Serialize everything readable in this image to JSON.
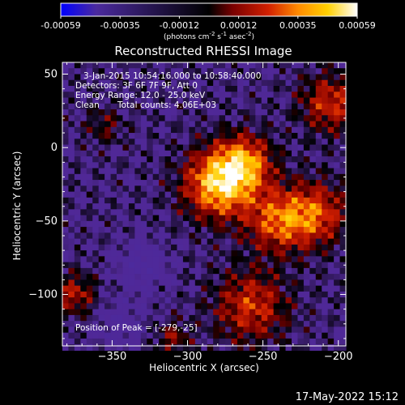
{
  "colorbar": {
    "tick_labels": [
      "-0.00059",
      "-0.00035",
      "-0.00012",
      "0.00012",
      "0.00035",
      "0.00059"
    ],
    "unit_base": "(photons cm",
    "unit_exp1": "-2",
    "unit_mid": " s",
    "unit_exp2": "-1",
    "unit_mid2": " asec",
    "unit_exp3": "-2",
    "unit_end": ")",
    "colors": [
      "#0000ff",
      "#4b2a9e",
      "#000000",
      "#7a0000",
      "#d22000",
      "#ff8a00",
      "#ffd000",
      "#ffffff"
    ]
  },
  "chart_data": {
    "type": "heatmap",
    "title": "Reconstructed RHESSI Image",
    "xlabel": "Heliocentric X (arcsec)",
    "ylabel": "Heliocentric Y (arcsec)",
    "xlim": [
      -383,
      -195
    ],
    "ylim": [
      -135,
      58
    ],
    "xticks": [
      -350,
      -300,
      -250,
      -200
    ],
    "yticks": [
      50,
      0,
      -50,
      -100
    ],
    "colorscale_range": [
      -0.00059,
      0.00059
    ],
    "peak_position": [
      -279,
      -25
    ],
    "sources": [
      {
        "x": -279,
        "y": -25,
        "sigma": 16,
        "amp": 0.00059
      },
      {
        "x": -262,
        "y": -10,
        "sigma": 13,
        "amp": 0.00042
      },
      {
        "x": -240,
        "y": -50,
        "sigma": 15,
        "amp": 0.00038
      },
      {
        "x": -215,
        "y": -45,
        "sigma": 15,
        "amp": 0.00036
      },
      {
        "x": -205,
        "y": 30,
        "sigma": 14,
        "amp": 0.00033
      },
      {
        "x": -258,
        "y": -108,
        "sigma": 17,
        "amp": 0.00034
      },
      {
        "x": -375,
        "y": -100,
        "sigma": 10,
        "amp": 0.00028
      },
      {
        "x": -310,
        "y": -130,
        "sigma": 8,
        "amp": 0.00022
      },
      {
        "x": -355,
        "y": 15,
        "sigma": 9,
        "amp": 0.00016
      },
      {
        "x": -330,
        "y": -80,
        "sigma": 12,
        "amp": -0.00018
      },
      {
        "x": -345,
        "y": -120,
        "sigma": 12,
        "amp": -0.00014
      }
    ]
  },
  "annotations": {
    "time": "3-Jan-2015 10:54:16.000 to 10:58:40.000",
    "detectors": "Detectors: 3F 6F 7F 9F, Att 0",
    "energy": "Energy Range: 12.0 - 25.0 keV",
    "method": "Clean",
    "counts": "Total counts: 4.06E+03",
    "peak": "Position of Peak = [-279,-25]"
  },
  "footer_timestamp": "17-May-2022 15:12"
}
